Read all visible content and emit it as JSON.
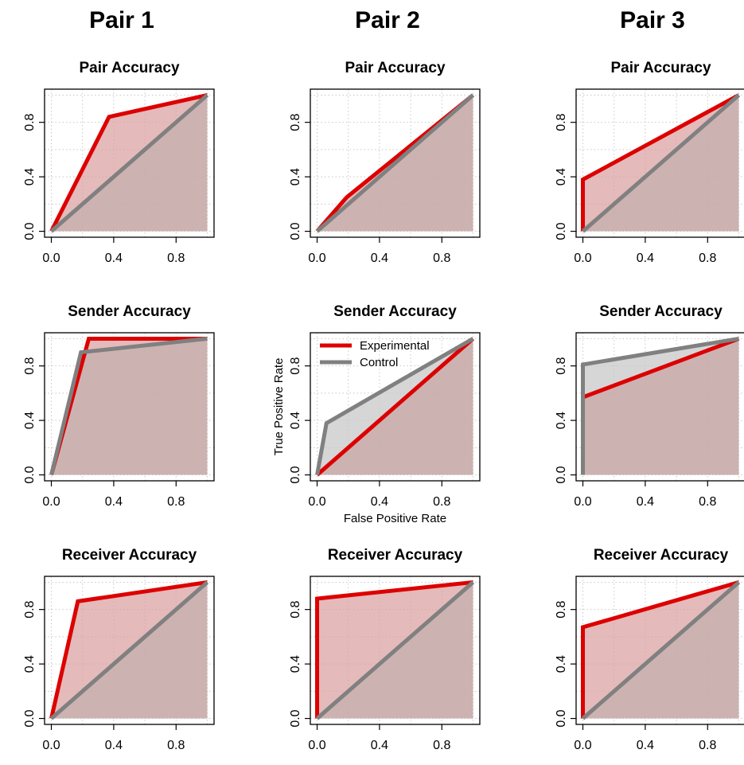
{
  "columns": [
    "Pair 1",
    "Pair 2",
    "Pair 3"
  ],
  "panel_titles": [
    "Pair Accuracy",
    "Sender Accuracy",
    "Receiver Accuracy"
  ],
  "legend": {
    "panel": [
      1,
      1
    ],
    "entries": [
      {
        "label": "Experimental",
        "color": "#dd0000"
      },
      {
        "label": "Control",
        "color": "#808080"
      }
    ]
  },
  "axis_labels": {
    "panel": [
      1,
      1
    ],
    "xlabel": "False Positive Rate",
    "ylabel": "True Positive Rate"
  },
  "colors": {
    "experimental_line": "#dd0000",
    "experimental_fill": "#f2c0c0",
    "control_line": "#808080",
    "control_fill": "#c8c8c8",
    "overlap_fill": "#c4a8a8"
  },
  "chart_data": [
    {
      "type": "area",
      "column": "Pair 1",
      "title": "Pair Accuracy",
      "xlim": [
        0,
        1
      ],
      "ylim": [
        0,
        1
      ],
      "xticks": [
        "0.0",
        "0.4",
        "0.8"
      ],
      "yticks": [
        "0.0",
        "0.4",
        "0.8"
      ],
      "grid": true,
      "series": [
        {
          "name": "Experimental",
          "x": [
            0,
            0.37,
            1
          ],
          "y": [
            0,
            0.84,
            1
          ]
        },
        {
          "name": "Control",
          "x": [
            0,
            1
          ],
          "y": [
            0,
            1
          ]
        }
      ]
    },
    {
      "type": "area",
      "column": "Pair 2",
      "title": "Pair Accuracy",
      "xlim": [
        0,
        1
      ],
      "ylim": [
        0,
        1
      ],
      "xticks": [
        "0.0",
        "0.4",
        "0.8"
      ],
      "yticks": [
        "0.0",
        "0.4",
        "0.8"
      ],
      "grid": true,
      "series": [
        {
          "name": "Experimental",
          "x": [
            0,
            0.19,
            1
          ],
          "y": [
            0,
            0.25,
            1
          ]
        },
        {
          "name": "Control",
          "x": [
            0,
            1
          ],
          "y": [
            0,
            1
          ]
        }
      ]
    },
    {
      "type": "area",
      "column": "Pair 3",
      "title": "Pair Accuracy",
      "xlim": [
        0,
        1
      ],
      "ylim": [
        0,
        1
      ],
      "xticks": [
        "0.0",
        "0.4",
        "0.8"
      ],
      "yticks": [
        "0.0",
        "0.4",
        "0.8"
      ],
      "grid": true,
      "series": [
        {
          "name": "Experimental",
          "x": [
            0,
            0,
            1
          ],
          "y": [
            0,
            0.38,
            1
          ]
        },
        {
          "name": "Control",
          "x": [
            0,
            1
          ],
          "y": [
            0,
            1
          ]
        }
      ]
    },
    {
      "type": "area",
      "column": "Pair 1",
      "title": "Sender Accuracy",
      "xlim": [
        0,
        1
      ],
      "ylim": [
        0,
        1
      ],
      "xticks": [
        "0.0",
        "0.4",
        "0.8"
      ],
      "yticks": [
        "0.0",
        "0.4",
        "0.8"
      ],
      "grid": true,
      "series": [
        {
          "name": "Experimental",
          "x": [
            0,
            0.24,
            1
          ],
          "y": [
            0,
            1,
            1
          ]
        },
        {
          "name": "Control",
          "x": [
            0,
            0.19,
            1
          ],
          "y": [
            0,
            0.9,
            1
          ]
        }
      ]
    },
    {
      "type": "area",
      "column": "Pair 2",
      "title": "Sender Accuracy",
      "xlim": [
        0,
        1
      ],
      "ylim": [
        0,
        1
      ],
      "xticks": [
        "0.0",
        "0.4",
        "0.8"
      ],
      "yticks": [
        "0.0",
        "0.4",
        "0.8"
      ],
      "grid": true,
      "xlabel": "False Positive Rate",
      "ylabel": "True Positive Rate",
      "legend": "top-left",
      "series": [
        {
          "name": "Experimental",
          "x": [
            0,
            1
          ],
          "y": [
            0,
            1
          ]
        },
        {
          "name": "Control",
          "x": [
            0,
            0.06,
            1
          ],
          "y": [
            0,
            0.38,
            1
          ]
        }
      ]
    },
    {
      "type": "area",
      "column": "Pair 3",
      "title": "Sender Accuracy",
      "xlim": [
        0,
        1
      ],
      "ylim": [
        0,
        1
      ],
      "xticks": [
        "0.0",
        "0.4",
        "0.8"
      ],
      "yticks": [
        "0.0",
        "0.4",
        "0.8"
      ],
      "grid": true,
      "series": [
        {
          "name": "Experimental",
          "x": [
            0,
            0,
            1
          ],
          "y": [
            0,
            0.57,
            1
          ]
        },
        {
          "name": "Control",
          "x": [
            0,
            0,
            1
          ],
          "y": [
            0,
            0.81,
            1
          ]
        }
      ]
    },
    {
      "type": "area",
      "column": "Pair 1",
      "title": "Receiver Accuracy",
      "xlim": [
        0,
        1
      ],
      "ylim": [
        0,
        1
      ],
      "xticks": [
        "0.0",
        "0.4",
        "0.8"
      ],
      "yticks": [
        "0.0",
        "0.4",
        "0.8"
      ],
      "grid": true,
      "series": [
        {
          "name": "Experimental",
          "x": [
            0,
            0.17,
            1
          ],
          "y": [
            0,
            0.86,
            1
          ]
        },
        {
          "name": "Control",
          "x": [
            0,
            1
          ],
          "y": [
            0,
            1
          ]
        }
      ]
    },
    {
      "type": "area",
      "column": "Pair 2",
      "title": "Receiver Accuracy",
      "xlim": [
        0,
        1
      ],
      "ylim": [
        0,
        1
      ],
      "xticks": [
        "0.0",
        "0.4",
        "0.8"
      ],
      "yticks": [
        "0.0",
        "0.4",
        "0.8"
      ],
      "grid": true,
      "series": [
        {
          "name": "Experimental",
          "x": [
            0,
            0,
            1
          ],
          "y": [
            0,
            0.88,
            1
          ]
        },
        {
          "name": "Control",
          "x": [
            0,
            1
          ],
          "y": [
            0,
            1
          ]
        }
      ]
    },
    {
      "type": "area",
      "column": "Pair 3",
      "title": "Receiver Accuracy",
      "xlim": [
        0,
        1
      ],
      "ylim": [
        0,
        1
      ],
      "xticks": [
        "0.0",
        "0.4",
        "0.8"
      ],
      "yticks": [
        "0.0",
        "0.4",
        "0.8"
      ],
      "grid": true,
      "series": [
        {
          "name": "Experimental",
          "x": [
            0,
            0,
            1
          ],
          "y": [
            0,
            0.67,
            1
          ]
        },
        {
          "name": "Control",
          "x": [
            0,
            1
          ],
          "y": [
            0,
            1
          ]
        }
      ]
    }
  ]
}
